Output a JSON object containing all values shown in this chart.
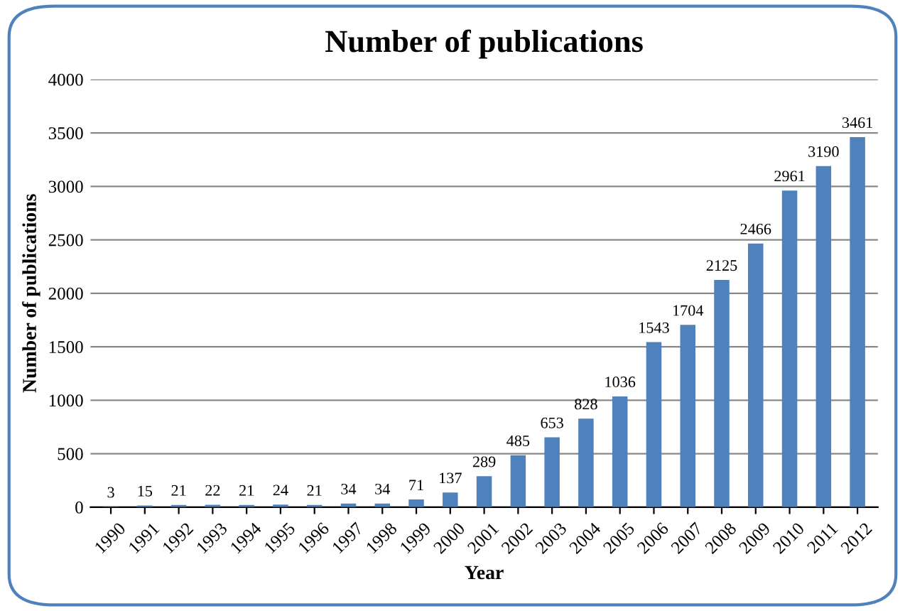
{
  "chart_data": {
    "type": "bar",
    "title": "Number of publications",
    "xlabel": "Year",
    "ylabel": "Number of publications",
    "categories": [
      "1990",
      "1991",
      "1992",
      "1993",
      "1994",
      "1995",
      "1996",
      "1997",
      "1998",
      "1999",
      "2000",
      "2001",
      "2002",
      "2003",
      "2004",
      "2005",
      "2006",
      "2007",
      "2008",
      "2009",
      "2010",
      "2011",
      "2012"
    ],
    "values": [
      3,
      15,
      21,
      22,
      21,
      24,
      21,
      34,
      34,
      71,
      137,
      289,
      485,
      653,
      828,
      1036,
      1543,
      1704,
      2125,
      2466,
      2961,
      3190,
      3461
    ],
    "color": "#4f81bd",
    "ylim": [
      0,
      4000
    ],
    "yticks": [
      0,
      500,
      1000,
      1500,
      2000,
      2500,
      3000,
      3500,
      4000
    ],
    "grid": "y",
    "data_labels": true,
    "legend": false
  }
}
